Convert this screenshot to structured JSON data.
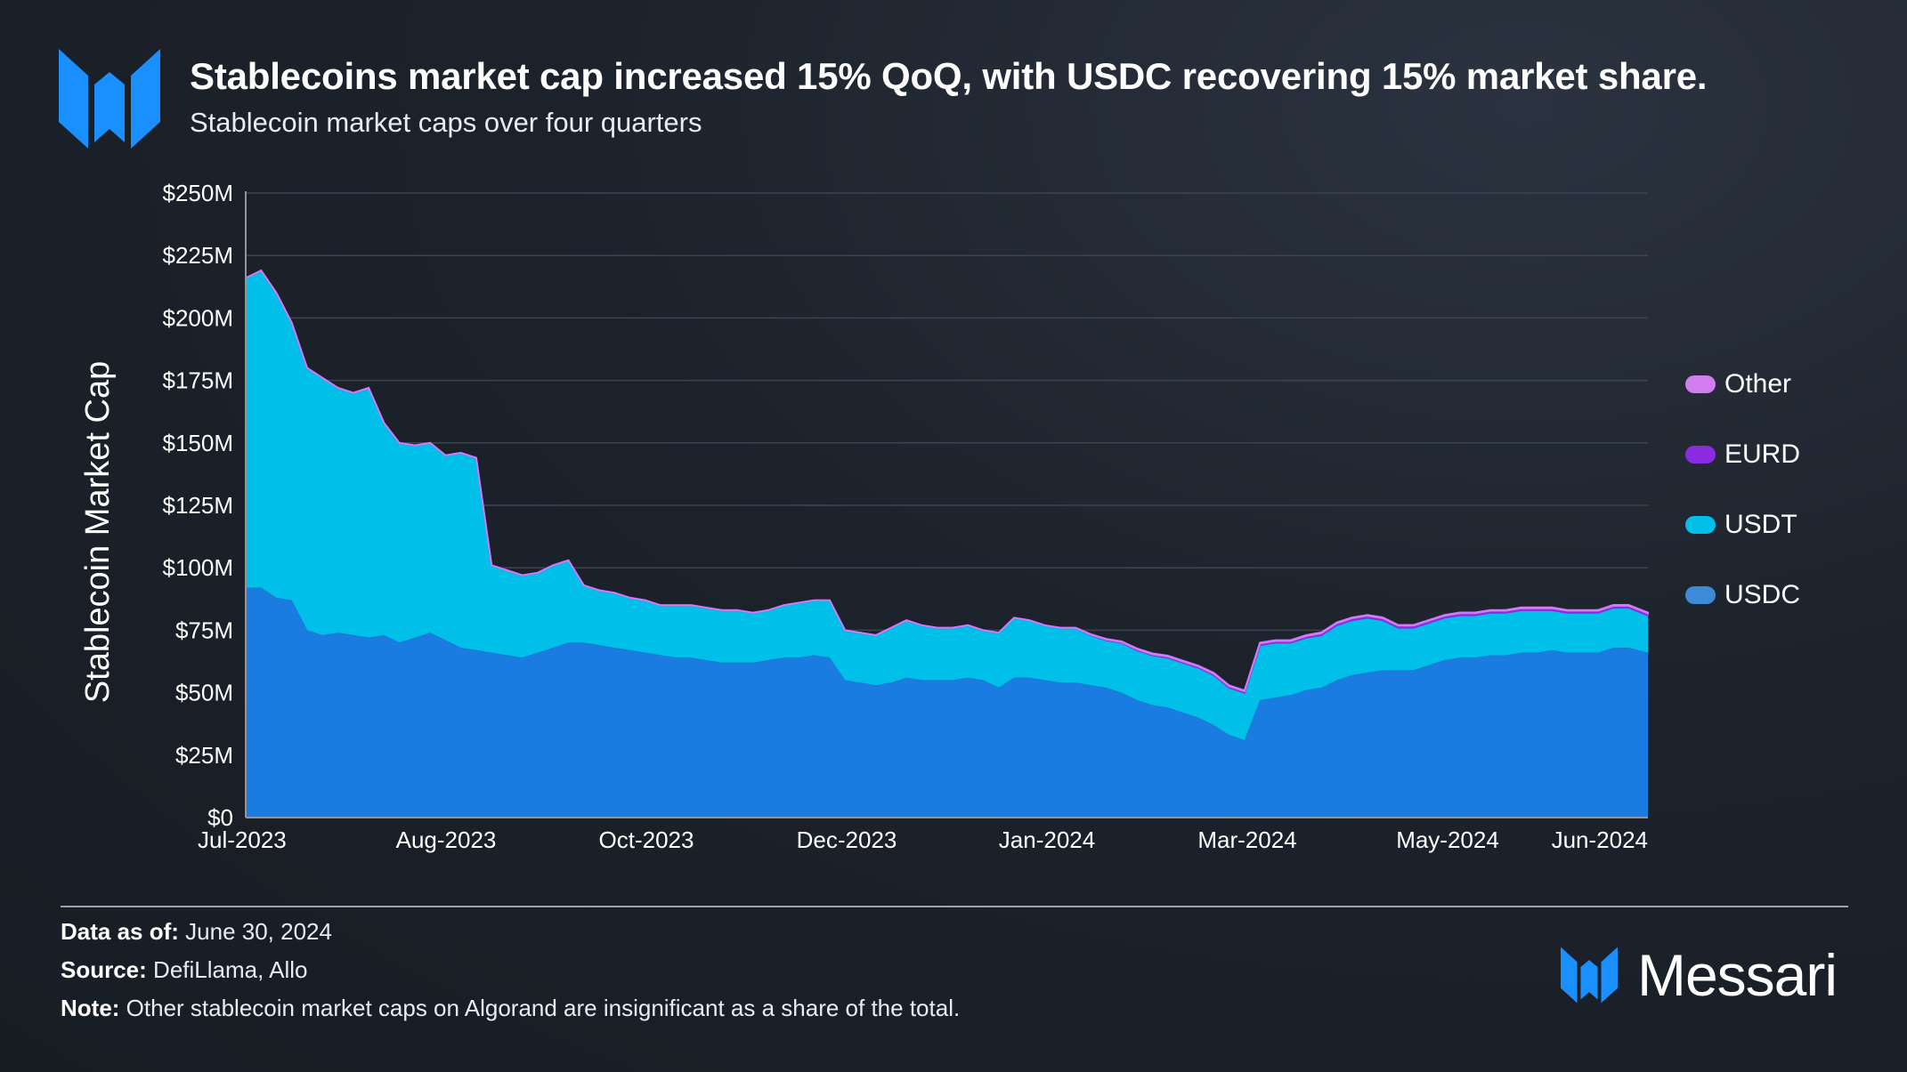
{
  "header": {
    "title": "Stablecoins market cap increased 15% QoQ, with USDC recovering 15% market share.",
    "subtitle": "Stablecoin market caps over four quarters"
  },
  "colors": {
    "usdc": "#1a7be1",
    "usdt": "#00bfe8",
    "eurd": "#8a2be2",
    "other": "#d27cf2",
    "brand": "#1a8fff"
  },
  "chart_data": {
    "type": "area",
    "stacked": true,
    "ylabel": "Stablecoin Market Cap",
    "xlabel": "",
    "ylim": [
      0,
      250
    ],
    "y_unit": "$M",
    "y_ticks": [
      "$0",
      "$25M",
      "$50M",
      "$75M",
      "$100M",
      "$125M",
      "$150M",
      "$175M",
      "$200M",
      "$225M",
      "$250M"
    ],
    "x_ticks": [
      "Jul-2023",
      "Aug-2023",
      "Oct-2023",
      "Dec-2023",
      "Jan-2024",
      "Mar-2024",
      "May-2024",
      "Jun-2024"
    ],
    "grid": true,
    "legend_position": "right",
    "legend": [
      "Other",
      "EURD",
      "USDT",
      "USDC"
    ],
    "x": [
      "2023-07-01",
      "2023-07-05",
      "2023-07-09",
      "2023-07-13",
      "2023-07-17",
      "2023-07-21",
      "2023-07-25",
      "2023-07-29",
      "2023-08-02",
      "2023-08-06",
      "2023-08-10",
      "2023-08-14",
      "2023-08-18",
      "2023-08-22",
      "2023-08-26",
      "2023-08-30",
      "2023-09-03",
      "2023-09-07",
      "2023-09-11",
      "2023-09-15",
      "2023-09-19",
      "2023-09-23",
      "2023-09-27",
      "2023-10-01",
      "2023-10-05",
      "2023-10-09",
      "2023-10-13",
      "2023-10-17",
      "2023-10-21",
      "2023-10-25",
      "2023-10-29",
      "2023-11-02",
      "2023-11-06",
      "2023-11-10",
      "2023-11-14",
      "2023-11-18",
      "2023-11-22",
      "2023-11-26",
      "2023-11-30",
      "2023-12-04",
      "2023-12-08",
      "2023-12-12",
      "2023-12-16",
      "2023-12-20",
      "2023-12-24",
      "2023-12-28",
      "2024-01-01",
      "2024-01-05",
      "2024-01-09",
      "2024-01-13",
      "2024-01-17",
      "2024-01-21",
      "2024-01-25",
      "2024-01-29",
      "2024-02-02",
      "2024-02-06",
      "2024-02-10",
      "2024-02-14",
      "2024-02-18",
      "2024-02-22",
      "2024-02-26",
      "2024-03-01",
      "2024-03-05",
      "2024-03-09",
      "2024-03-13",
      "2024-03-17",
      "2024-03-21",
      "2024-03-25",
      "2024-03-29",
      "2024-04-02",
      "2024-04-06",
      "2024-04-10",
      "2024-04-14",
      "2024-04-18",
      "2024-04-22",
      "2024-04-26",
      "2024-04-30",
      "2024-05-04",
      "2024-05-08",
      "2024-05-12",
      "2024-05-16",
      "2024-05-20",
      "2024-05-24",
      "2024-05-28",
      "2024-06-01",
      "2024-06-05",
      "2024-06-09",
      "2024-06-13",
      "2024-06-17",
      "2024-06-21",
      "2024-06-25",
      "2024-06-30"
    ],
    "series": [
      {
        "name": "USDC",
        "values": [
          92,
          92,
          88,
          87,
          75,
          73,
          74,
          73,
          72,
          73,
          70,
          72,
          74,
          71,
          68,
          67,
          66,
          65,
          64,
          66,
          68,
          70,
          70,
          69,
          68,
          67,
          66,
          65,
          64,
          64,
          63,
          62,
          62,
          62,
          63,
          64,
          64,
          65,
          64,
          55,
          54,
          53,
          54,
          56,
          55,
          55,
          55,
          56,
          55,
          52,
          56,
          56,
          55,
          54,
          54,
          53,
          52,
          50,
          47,
          45,
          44,
          42,
          40,
          37,
          33,
          31,
          47,
          48,
          49,
          51,
          52,
          55,
          57,
          58,
          59,
          59,
          59,
          61,
          63,
          64,
          64,
          65,
          65,
          66,
          66,
          67,
          66,
          66,
          66,
          68,
          68,
          66
        ]
      },
      {
        "name": "USDT",
        "values": [
          124,
          127,
          122,
          111,
          105,
          103,
          98,
          97,
          100,
          85,
          80,
          77,
          76,
          74,
          78,
          77,
          35,
          34,
          33,
          32,
          33,
          33,
          23,
          22,
          22,
          21,
          21,
          20,
          21,
          21,
          21,
          21,
          21,
          20,
          20,
          21,
          22,
          22,
          23,
          20,
          20,
          20,
          22,
          23,
          22,
          21,
          21,
          21,
          20,
          22,
          24,
          23,
          22,
          22,
          22,
          20,
          19,
          20,
          20,
          20,
          20,
          20,
          20,
          20,
          19,
          19,
          22,
          22,
          21,
          21,
          21,
          22,
          22,
          22,
          20,
          17,
          17,
          17,
          17,
          17,
          17,
          17,
          17,
          17,
          17,
          16,
          16,
          16,
          16,
          16,
          16,
          15
        ]
      },
      {
        "name": "EURD",
        "values": [
          0,
          0,
          0,
          0,
          0,
          0,
          0,
          0,
          0,
          0,
          0,
          0,
          0,
          0,
          0,
          0,
          0,
          0,
          0,
          0,
          0,
          0,
          0,
          0,
          0,
          0,
          0,
          0,
          0,
          0,
          0,
          0,
          0,
          0,
          0,
          0,
          0,
          0,
          0,
          0,
          0,
          0,
          0,
          0,
          0,
          0,
          0,
          0,
          0,
          0,
          0,
          0,
          0,
          0,
          0,
          0.2,
          0.3,
          0.3,
          0.4,
          0.4,
          0.5,
          0.5,
          0.5,
          0.6,
          0.6,
          0.6,
          0.7,
          0.7,
          0.7,
          0.7,
          0.8,
          0.8,
          0.8,
          0.8,
          0.8,
          0.8,
          0.8,
          0.8,
          0.8,
          0.8,
          0.8,
          0.8,
          0.8,
          0.8,
          0.8,
          0.8,
          0.8,
          0.8,
          0.8,
          0.8,
          0.8,
          0.8
        ]
      },
      {
        "name": "Other",
        "values": [
          0,
          0,
          0,
          0,
          0,
          0,
          0,
          0,
          0,
          0,
          0,
          0,
          0,
          0,
          0,
          0,
          0,
          0,
          0,
          0,
          0,
          0,
          0,
          0,
          0,
          0,
          0,
          0,
          0,
          0,
          0,
          0,
          0,
          0,
          0,
          0,
          0,
          0,
          0,
          0,
          0,
          0,
          0,
          0,
          0,
          0,
          0,
          0,
          0,
          0,
          0,
          0,
          0,
          0,
          0,
          0.2,
          0.2,
          0.2,
          0.3,
          0.3,
          0.3,
          0.3,
          0.3,
          0.3,
          0.3,
          0.3,
          0.3,
          0.3,
          0.3,
          0.3,
          0.3,
          0.3,
          0.3,
          0.3,
          0.3,
          0.3,
          0.3,
          0.3,
          0.3,
          0.3,
          0.3,
          0.3,
          0.3,
          0.3,
          0.3,
          0.3,
          0.3,
          0.3,
          0.3,
          0.3,
          0.3,
          0.3
        ]
      }
    ]
  },
  "legend": [
    {
      "label": "Other",
      "color": "#d27cf2"
    },
    {
      "label": "EURD",
      "color": "#8a2be2"
    },
    {
      "label": "USDT",
      "color": "#00bfe8"
    },
    {
      "label": "USDC",
      "color": "#3d8bd6"
    }
  ],
  "footer": {
    "data_as_of_label": "Data as of:",
    "data_as_of_value": " June 30, 2024",
    "source_label": "Source:",
    "source_value": " DefiLlama, Allo",
    "note_label": "Note:",
    "note_value": " Other stablecoin market caps on Algorand are insignificant as a share of the total."
  },
  "brand": {
    "name": "Messari",
    "logo_icon": "messari-logo-icon"
  }
}
